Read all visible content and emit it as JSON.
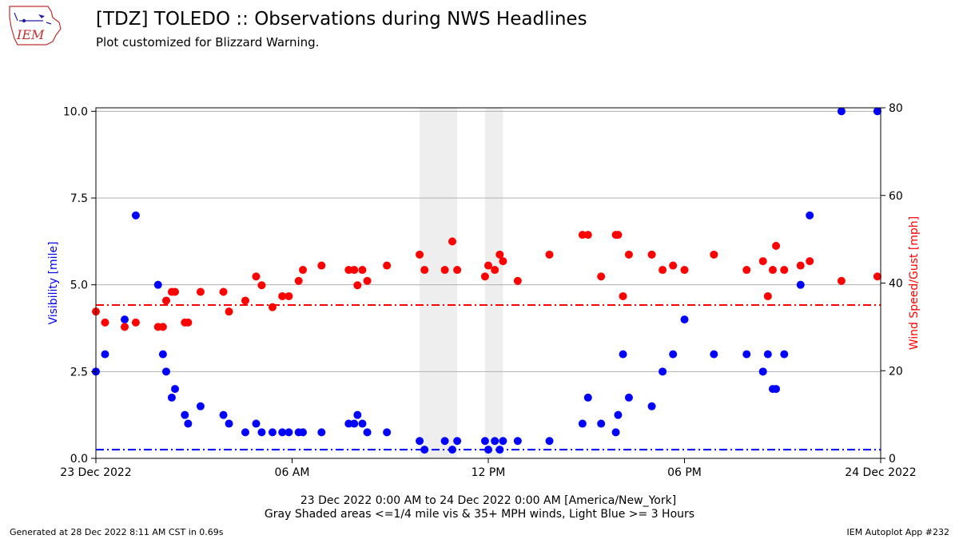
{
  "header": {
    "title": "[TDZ] TOLEDO :: Observations during NWS Headlines",
    "subtitle": "Plot customized for Blizzard Warning.",
    "logo_text": "IEM"
  },
  "footer": {
    "left": "Generated at 28 Dec 2022 8:11 AM CST in 0.69s",
    "right": "IEM Autoplot App #232"
  },
  "chart_data": {
    "type": "scatter",
    "xlabel_line1": "23 Dec 2022 0:00 AM to 24 Dec 2022 0:00 AM [America/New_York]",
    "xlabel_line2": "Gray Shaded areas <=1/4 mile vis & 35+ MPH winds, Light Blue >= 3 Hours",
    "x_unit": "hours since 23 Dec 2022 00:00 America/New_York",
    "xlim": [
      0,
      24
    ],
    "x_ticks": [
      {
        "x": 0,
        "label": "23 Dec 2022"
      },
      {
        "x": 6,
        "label": "06 AM"
      },
      {
        "x": 12,
        "label": "12 PM"
      },
      {
        "x": 18,
        "label": "06 PM"
      },
      {
        "x": 24,
        "label": "24 Dec 2022"
      }
    ],
    "y_left": {
      "label": "Visibility [mile]",
      "lim": [
        0,
        10.1
      ],
      "ticks": [
        0,
        2.5,
        5,
        7.5,
        10
      ],
      "tick_labels": [
        "0.0",
        "2.5",
        "5.0",
        "7.5",
        "10.0"
      ],
      "color": "#0000ff",
      "threshold": 0.25
    },
    "y_right": {
      "label": "Wind Speed/Gust [mph]",
      "lim": [
        0,
        80
      ],
      "ticks": [
        0,
        20,
        40,
        60,
        80
      ],
      "tick_labels": [
        "0",
        "20",
        "40",
        "60",
        "80"
      ],
      "color": "#ff0000",
      "threshold": 35
    },
    "grid": true,
    "shaded_ranges": [
      [
        9.9,
        11.05
      ],
      [
        11.9,
        12.45
      ]
    ],
    "shade_color": "#eeeeee",
    "series": [
      {
        "name": "Visibility",
        "axis": "left",
        "color": "#0000ff",
        "points": [
          [
            0.0,
            2.5
          ],
          [
            0.28,
            3.0
          ],
          [
            0.88,
            4.0
          ],
          [
            1.22,
            7.0
          ],
          [
            1.9,
            5.0
          ],
          [
            2.05,
            3.0
          ],
          [
            2.15,
            2.5
          ],
          [
            2.32,
            1.75
          ],
          [
            2.42,
            2.0
          ],
          [
            2.72,
            1.25
          ],
          [
            2.82,
            1.0
          ],
          [
            3.2,
            1.5
          ],
          [
            3.9,
            1.25
          ],
          [
            4.07,
            1.0
          ],
          [
            4.57,
            0.75
          ],
          [
            4.9,
            1.0
          ],
          [
            5.07,
            0.75
          ],
          [
            5.4,
            0.75
          ],
          [
            5.7,
            0.75
          ],
          [
            5.9,
            0.75
          ],
          [
            6.2,
            0.75
          ],
          [
            6.33,
            0.75
          ],
          [
            6.9,
            0.75
          ],
          [
            7.73,
            1.0
          ],
          [
            7.9,
            1.0
          ],
          [
            8.0,
            1.25
          ],
          [
            8.15,
            1.0
          ],
          [
            8.3,
            0.75
          ],
          [
            8.9,
            0.75
          ],
          [
            9.9,
            0.5
          ],
          [
            10.05,
            0.25
          ],
          [
            10.67,
            0.5
          ],
          [
            10.9,
            0.25
          ],
          [
            11.05,
            0.5
          ],
          [
            11.9,
            0.5
          ],
          [
            12.0,
            0.25
          ],
          [
            12.2,
            0.5
          ],
          [
            12.35,
            0.25
          ],
          [
            12.45,
            0.5
          ],
          [
            12.9,
            0.5
          ],
          [
            13.87,
            0.5
          ],
          [
            14.88,
            1.0
          ],
          [
            15.05,
            1.75
          ],
          [
            15.45,
            1.0
          ],
          [
            15.9,
            0.75
          ],
          [
            15.97,
            1.25
          ],
          [
            16.12,
            3.0
          ],
          [
            16.3,
            1.75
          ],
          [
            17.0,
            1.5
          ],
          [
            17.33,
            2.5
          ],
          [
            17.65,
            3.0
          ],
          [
            18.0,
            4.0
          ],
          [
            18.9,
            3.0
          ],
          [
            19.9,
            3.0
          ],
          [
            20.4,
            2.5
          ],
          [
            20.55,
            3.0
          ],
          [
            20.7,
            2.0
          ],
          [
            20.8,
            2.0
          ],
          [
            21.05,
            3.0
          ],
          [
            21.55,
            5.0
          ],
          [
            21.83,
            7.0
          ],
          [
            22.8,
            10.0
          ],
          [
            23.9,
            10.0
          ]
        ]
      },
      {
        "name": "Wind Speed/Gust",
        "axis": "right",
        "color": "#ff0000",
        "points": [
          [
            0.0,
            33.5
          ],
          [
            0.28,
            31.0
          ],
          [
            0.88,
            30.0
          ],
          [
            1.22,
            31.0
          ],
          [
            1.9,
            30.0
          ],
          [
            2.05,
            30.0
          ],
          [
            2.15,
            36.0
          ],
          [
            2.32,
            38.0
          ],
          [
            2.42,
            38.0
          ],
          [
            2.72,
            31.0
          ],
          [
            2.82,
            31.0
          ],
          [
            3.2,
            38.0
          ],
          [
            3.9,
            38.0
          ],
          [
            4.07,
            33.5
          ],
          [
            4.57,
            36.0
          ],
          [
            4.9,
            41.5
          ],
          [
            5.07,
            39.5
          ],
          [
            5.4,
            34.5
          ],
          [
            5.7,
            37.0
          ],
          [
            5.9,
            37.0
          ],
          [
            6.2,
            40.5
          ],
          [
            6.33,
            43.0
          ],
          [
            6.9,
            44.0
          ],
          [
            7.73,
            43.0
          ],
          [
            7.9,
            43.0
          ],
          [
            8.0,
            39.5
          ],
          [
            8.15,
            43.0
          ],
          [
            8.3,
            40.5
          ],
          [
            8.9,
            44.0
          ],
          [
            9.9,
            46.5
          ],
          [
            10.05,
            43.0
          ],
          [
            10.67,
            43.0
          ],
          [
            10.9,
            49.5
          ],
          [
            11.05,
            43.0
          ],
          [
            11.9,
            41.5
          ],
          [
            12.0,
            44.0
          ],
          [
            12.2,
            43.0
          ],
          [
            12.35,
            46.5
          ],
          [
            12.45,
            45.0
          ],
          [
            12.9,
            40.5
          ],
          [
            13.87,
            46.5
          ],
          [
            14.88,
            51.0
          ],
          [
            15.05,
            51.0
          ],
          [
            15.45,
            41.5
          ],
          [
            15.9,
            51.0
          ],
          [
            15.97,
            51.0
          ],
          [
            16.12,
            37.0
          ],
          [
            16.3,
            46.5
          ],
          [
            17.0,
            46.5
          ],
          [
            17.33,
            43.0
          ],
          [
            17.65,
            44.0
          ],
          [
            18.0,
            43.0
          ],
          [
            18.9,
            46.5
          ],
          [
            19.9,
            43.0
          ],
          [
            20.4,
            45.0
          ],
          [
            20.55,
            37.0
          ],
          [
            20.7,
            43.0
          ],
          [
            20.8,
            48.5
          ],
          [
            21.05,
            43.0
          ],
          [
            21.55,
            44.0
          ],
          [
            21.83,
            45.0
          ],
          [
            22.8,
            40.5
          ],
          [
            23.9,
            41.5
          ]
        ]
      }
    ]
  }
}
